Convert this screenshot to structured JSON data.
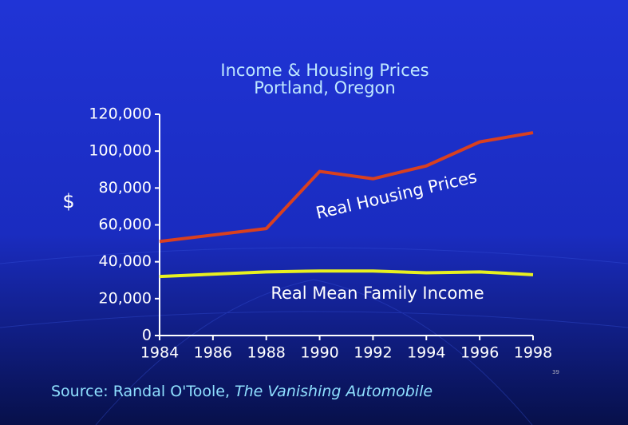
{
  "chart_data": {
    "type": "line",
    "title": "Income & Housing Prices",
    "subtitle": "Portland, Oregon",
    "ylabel": "$",
    "x": [
      1984,
      1988,
      1990,
      1992,
      1994,
      1996,
      1998
    ],
    "xlim": [
      1984,
      1998
    ],
    "xticks": [
      1984,
      1986,
      1988,
      1990,
      1992,
      1994,
      1996,
      1998
    ],
    "ylim": [
      0,
      120000
    ],
    "yticks": [
      0,
      {
        "value": 20000,
        "label": "20,000"
      },
      {
        "value": 40000,
        "label": "40,000"
      },
      {
        "value": 60000,
        "label": "60,000"
      },
      {
        "value": 80000,
        "label": "80,000"
      },
      {
        "value": 100000,
        "label": "100,000"
      },
      {
        "value": 120000,
        "label": "120,000"
      }
    ],
    "series": [
      {
        "name": "Real Housing Prices",
        "color": "#d9401f",
        "values": [
          51000,
          58000,
          89000,
          85000,
          92000,
          105000,
          110000
        ]
      },
      {
        "name": "Real Mean Family Income",
        "color": "#e8f020",
        "values": [
          32000,
          34500,
          35000,
          35000,
          34000,
          34500,
          33000
        ]
      }
    ],
    "source": {
      "prefix": "Source: Randal O'Toole,",
      "book": "The Vanishing Automobile"
    },
    "page_number": "39"
  }
}
